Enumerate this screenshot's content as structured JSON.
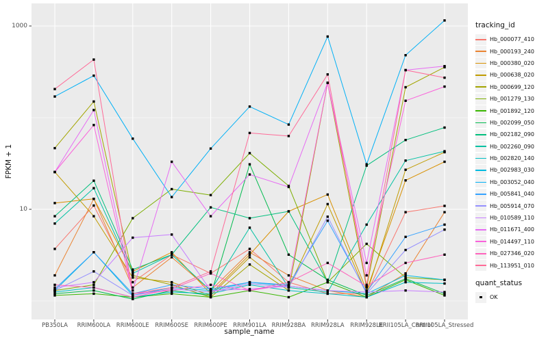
{
  "chart": {
    "y_axis": {
      "label": "FPKM + 1"
    },
    "x_axis": {
      "label": "sample_name"
    },
    "legend": {
      "tracking_title": "tracking_id",
      "quant_title": "quant_status",
      "quant_ok_label": "OK",
      "quant_ok_color": "#000000"
    },
    "colors": {
      "panel_bg": "#EBEBEB",
      "grid": "#FFFFFF",
      "key_bg": "#F2F2F2",
      "tick_mark": "#333333",
      "tick_text": "#4D4D4D",
      "point": "#000000"
    }
  },
  "chart_data": {
    "type": "line",
    "title": "",
    "xlabel": "sample_name",
    "ylabel": "FPKM + 1",
    "yscale": "log10",
    "grid": "white-on-grey",
    "legend_position": "right",
    "point_marker": "black-square",
    "y_major_breaks": [
      10,
      1000
    ],
    "y_tick_labels": [
      "10",
      "1000"
    ],
    "y_minor_breaks": [
      1,
      100
    ],
    "ylim": [
      0.65,
      1700
    ],
    "categories": [
      "PB350LA",
      "RRIM600LA",
      "RRIM600LE",
      "RRIM600SE",
      "RRIM600PE",
      "RRIM901LA",
      "RRIM928BA",
      "RRIM928LA",
      "RRIM928LE",
      "RRII105LA_Control",
      "RRII105LA_Stressed"
    ],
    "series": [
      {
        "name": "Hb_000077_410",
        "color": "#F8766D",
        "values": [
          3.7,
          11,
          1.6,
          3.2,
          2.0,
          3.7,
          1.6,
          1.2,
          1.2,
          9.3,
          10.9
        ]
      },
      {
        "name": "Hb_000193_240",
        "color": "#EA8331",
        "values": [
          1.9,
          13,
          1.4,
          3.0,
          1.3,
          3.4,
          1.9,
          1.3,
          1.1,
          2.0,
          9.3
        ]
      },
      {
        "name": "Hb_000380_020",
        "color": "#D89000",
        "values": [
          11.7,
          13,
          2.1,
          3.4,
          1.2,
          3.2,
          9.5,
          14.5,
          1.3,
          20.7,
          33
        ]
      },
      {
        "name": "Hb_000638_020",
        "color": "#C09B00",
        "values": [
          25.5,
          8.4,
          1.8,
          1.6,
          1.15,
          3.0,
          1.4,
          11.4,
          1.2,
          27,
          42
        ]
      },
      {
        "name": "Hb_000699_120",
        "color": "#A3A500",
        "values": [
          46.5,
          150,
          1.9,
          1.5,
          1.1,
          2.5,
          1.3,
          240,
          1.4,
          215,
          355
        ]
      },
      {
        "name": "Hb_001279_130",
        "color": "#7CAE00",
        "values": [
          1.3,
          1.5,
          8.0,
          16.6,
          14.3,
          41,
          18,
          1.6,
          4.2,
          1.8,
          1.7
        ]
      },
      {
        "name": "Hb_001892_120",
        "color": "#39B600",
        "values": [
          1.15,
          1.2,
          1.1,
          1.2,
          1.1,
          1.3,
          1.1,
          1.6,
          1.1,
          1.7,
          1.15
        ]
      },
      {
        "name": "Hb_002099_050",
        "color": "#00BB4E",
        "values": [
          1.2,
          1.3,
          1.05,
          1.3,
          1.15,
          31,
          3.2,
          1.7,
          1.15,
          1.75,
          1.2
        ]
      },
      {
        "name": "Hb_002182_090",
        "color": "#00BF7D",
        "values": [
          8.4,
          20.5,
          2.2,
          3.2,
          10.5,
          8.0,
          9.5,
          1.6,
          30,
          57,
          78
        ]
      },
      {
        "name": "Hb_002260_090",
        "color": "#00C1A3",
        "values": [
          7.0,
          17,
          2.0,
          3.2,
          1.3,
          6.3,
          1.4,
          1.25,
          6.8,
          34,
          43
        ]
      },
      {
        "name": "Hb_002820_140",
        "color": "#00BFC4",
        "values": [
          1.25,
          1.4,
          1.1,
          1.25,
          1.2,
          1.5,
          1.3,
          1.2,
          1.1,
          1.6,
          1.55
        ]
      },
      {
        "name": "Hb_002983_030",
        "color": "#00BAE0",
        "values": [
          1.3,
          3.4,
          1.15,
          1.4,
          1.3,
          1.6,
          1.45,
          1.3,
          1.2,
          1.9,
          1.7
        ]
      },
      {
        "name": "Hb_003052_040",
        "color": "#00B0F6",
        "values": [
          170,
          287,
          59,
          13.6,
          46,
          132,
          84,
          767,
          31,
          480,
          1150
        ]
      },
      {
        "name": "Hb_005841_040",
        "color": "#35A2FF",
        "values": [
          1.35,
          3.4,
          1.2,
          1.5,
          1.35,
          1.6,
          1.5,
          7.5,
          1.25,
          5.0,
          6.8
        ]
      },
      {
        "name": "Hb_005914_070",
        "color": "#9590FF",
        "values": [
          1.3,
          2.1,
          1.15,
          1.35,
          1.25,
          1.55,
          1.4,
          8.3,
          1.2,
          3.6,
          6.0
        ]
      },
      {
        "name": "Hb_010589_110",
        "color": "#C77CFF",
        "values": [
          1.4,
          1.6,
          4.9,
          5.3,
          1.3,
          1.35,
          1.45,
          1.3,
          1.25,
          1.3,
          1.25
        ]
      },
      {
        "name": "Hb_011671_400",
        "color": "#E76BF3",
        "values": [
          25.5,
          121,
          1.3,
          33,
          8.4,
          24,
          17.5,
          240,
          2.6,
          330,
          365
        ]
      },
      {
        "name": "Hb_014497_110",
        "color": "#FA62DB",
        "values": [
          25.5,
          83,
          1.2,
          1.3,
          1.5,
          1.3,
          1.5,
          240,
          1.9,
          153,
          218
        ]
      },
      {
        "name": "Hb_027346_020",
        "color": "#FF62BC",
        "values": [
          1.5,
          1.4,
          1.1,
          1.35,
          2.0,
          1.3,
          1.6,
          2.6,
          1.45,
          2.6,
          3.2
        ]
      },
      {
        "name": "Hb_113951_010",
        "color": "#FF6A98",
        "values": [
          205,
          430,
          1.2,
          1.4,
          2.1,
          68,
          63,
          296,
          1.5,
          330,
          273
        ]
      }
    ]
  }
}
